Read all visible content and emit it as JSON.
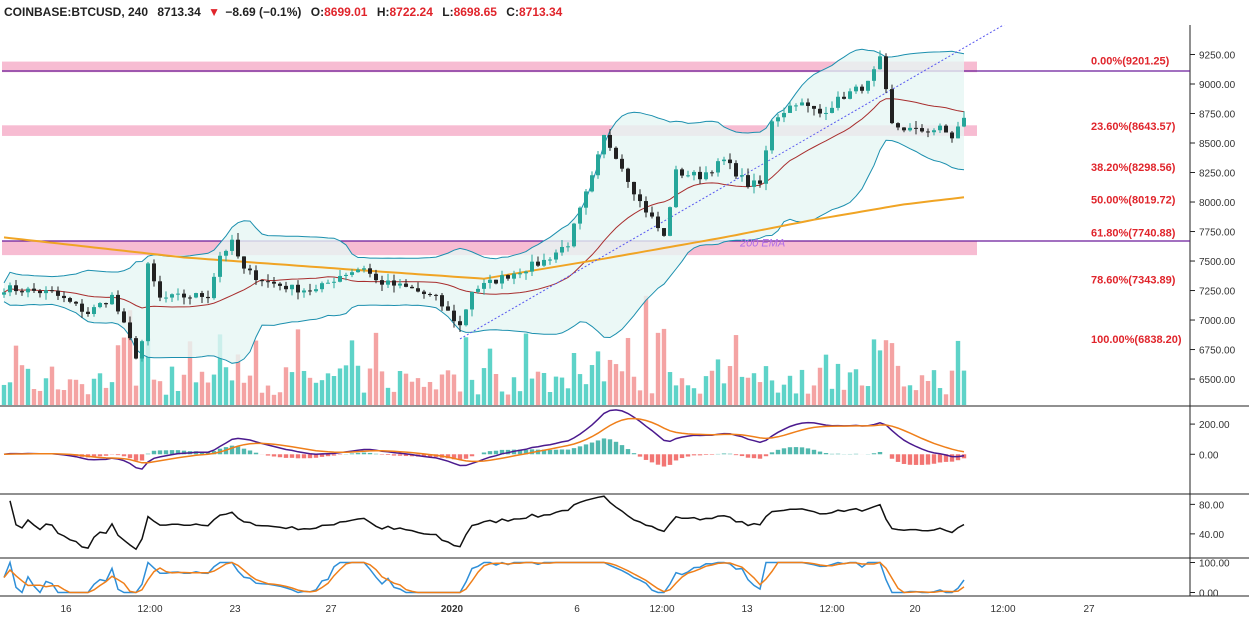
{
  "header": {
    "symbol": "COINBASE:BTCUSD, 240",
    "last": "8713.34",
    "change": "−8.69 (−0.1%)",
    "o_label": "O:",
    "o": "8699.01",
    "h_label": "H:",
    "h": "8722.24",
    "l_label": "L:",
    "l": "8698.65",
    "c_label": "C:",
    "c": "8713.34"
  },
  "colors": {
    "up": "#26a69a",
    "down": "#ef5350",
    "ema200": "#f0a424",
    "bb": "#1b8fae",
    "basis": "#a82e2e",
    "zone": "#f7bcd2",
    "hline": "#6a1b9a",
    "fib_text": "#e0242b",
    "macd": "#4b1a8e",
    "signal": "#ef7f1a",
    "stoch_k": "#2f8fd8",
    "stoch_d": "#ef7f1a"
  },
  "chart_data": {
    "type": "candlestick",
    "price_axis": {
      "ticks": [
        "9250.00",
        "9000.00",
        "8750.00",
        "8500.00",
        "8250.00",
        "8000.00",
        "7750.00",
        "7500.00",
        "7250.00",
        "7000.00",
        "6750.00",
        "6500.00"
      ],
      "ylim": [
        6280,
        9500
      ]
    },
    "time_axis": {
      "labels": [
        "16",
        "12:00",
        "23",
        "27",
        "2020",
        "6",
        "12:00",
        "13",
        "12:00",
        "20",
        "20",
        "12:00",
        "27"
      ]
    },
    "price_path": [
      [
        0,
        7270
      ],
      [
        8,
        7230
      ],
      [
        14,
        7060
      ],
      [
        18,
        7200
      ],
      [
        22,
        6700
      ],
      [
        23,
        6820
      ],
      [
        24,
        7450
      ],
      [
        26,
        7180
      ],
      [
        30,
        7200
      ],
      [
        34,
        7210
      ],
      [
        36,
        7550
      ],
      [
        38,
        7650
      ],
      [
        40,
        7420
      ],
      [
        44,
        7320
      ],
      [
        48,
        7270
      ],
      [
        52,
        7250
      ],
      [
        56,
        7380
      ],
      [
        60,
        7450
      ],
      [
        62,
        7330
      ],
      [
        68,
        7260
      ],
      [
        72,
        7180
      ],
      [
        76,
        6950
      ],
      [
        78,
        7250
      ],
      [
        84,
        7380
      ],
      [
        90,
        7500
      ],
      [
        94,
        7650
      ],
      [
        98,
        8200
      ],
      [
        100,
        8550
      ],
      [
        102,
        8400
      ],
      [
        106,
        8000
      ],
      [
        108,
        7860
      ],
      [
        110,
        7700
      ],
      [
        112,
        8250
      ],
      [
        116,
        8220
      ],
      [
        120,
        8350
      ],
      [
        124,
        8150
      ],
      [
        126,
        8150
      ],
      [
        128,
        8700
      ],
      [
        132,
        8850
      ],
      [
        136,
        8750
      ],
      [
        140,
        8900
      ],
      [
        144,
        9000
      ],
      [
        146,
        9200
      ],
      [
        148,
        8650
      ],
      [
        152,
        8600
      ],
      [
        156,
        8620
      ],
      [
        158,
        8550
      ],
      [
        160,
        8713
      ]
    ],
    "n_candles": 161,
    "fib_levels": [
      {
        "label": "0.00%(9201.25)",
        "price": 9201.25
      },
      {
        "label": "23.60%(8643.57)",
        "price": 8643.57
      },
      {
        "label": "38.20%(8298.56)",
        "price": 8298.56
      },
      {
        "label": "50.00%(8019.72)",
        "price": 8019.72
      },
      {
        "label": "61.80%(7740.88)",
        "price": 7740.88
      },
      {
        "label": "78.60%(7343.89)",
        "price": 7343.89
      },
      {
        "label": "100.00%(6838.20)",
        "price": 6838.2
      }
    ],
    "zones": [
      [
        9100,
        9190
      ],
      [
        8560,
        8650
      ],
      [
        7550,
        7670
      ]
    ],
    "hlines": [
      9110,
      7670
    ],
    "ema_label": "200 EMA",
    "ema200_path": [
      [
        0,
        7700
      ],
      [
        30,
        7530
      ],
      [
        60,
        7420
      ],
      [
        80,
        7350
      ],
      [
        100,
        7520
      ],
      [
        120,
        7700
      ],
      [
        135,
        7850
      ],
      [
        150,
        7980
      ],
      [
        160,
        8040
      ]
    ],
    "trendline": [
      [
        76,
        6840
      ],
      [
        170,
        9600
      ]
    ],
    "macd": {
      "ticks": [
        "200.00",
        "0.00"
      ],
      "ylim": [
        -250,
        300
      ]
    },
    "rsi": {
      "ticks": [
        "80.00",
        "40.00"
      ],
      "ylim": [
        10,
        90
      ]
    },
    "stoch": {
      "ticks": [
        "100.00",
        "0.00"
      ],
      "ylim": [
        -5,
        105
      ]
    }
  }
}
